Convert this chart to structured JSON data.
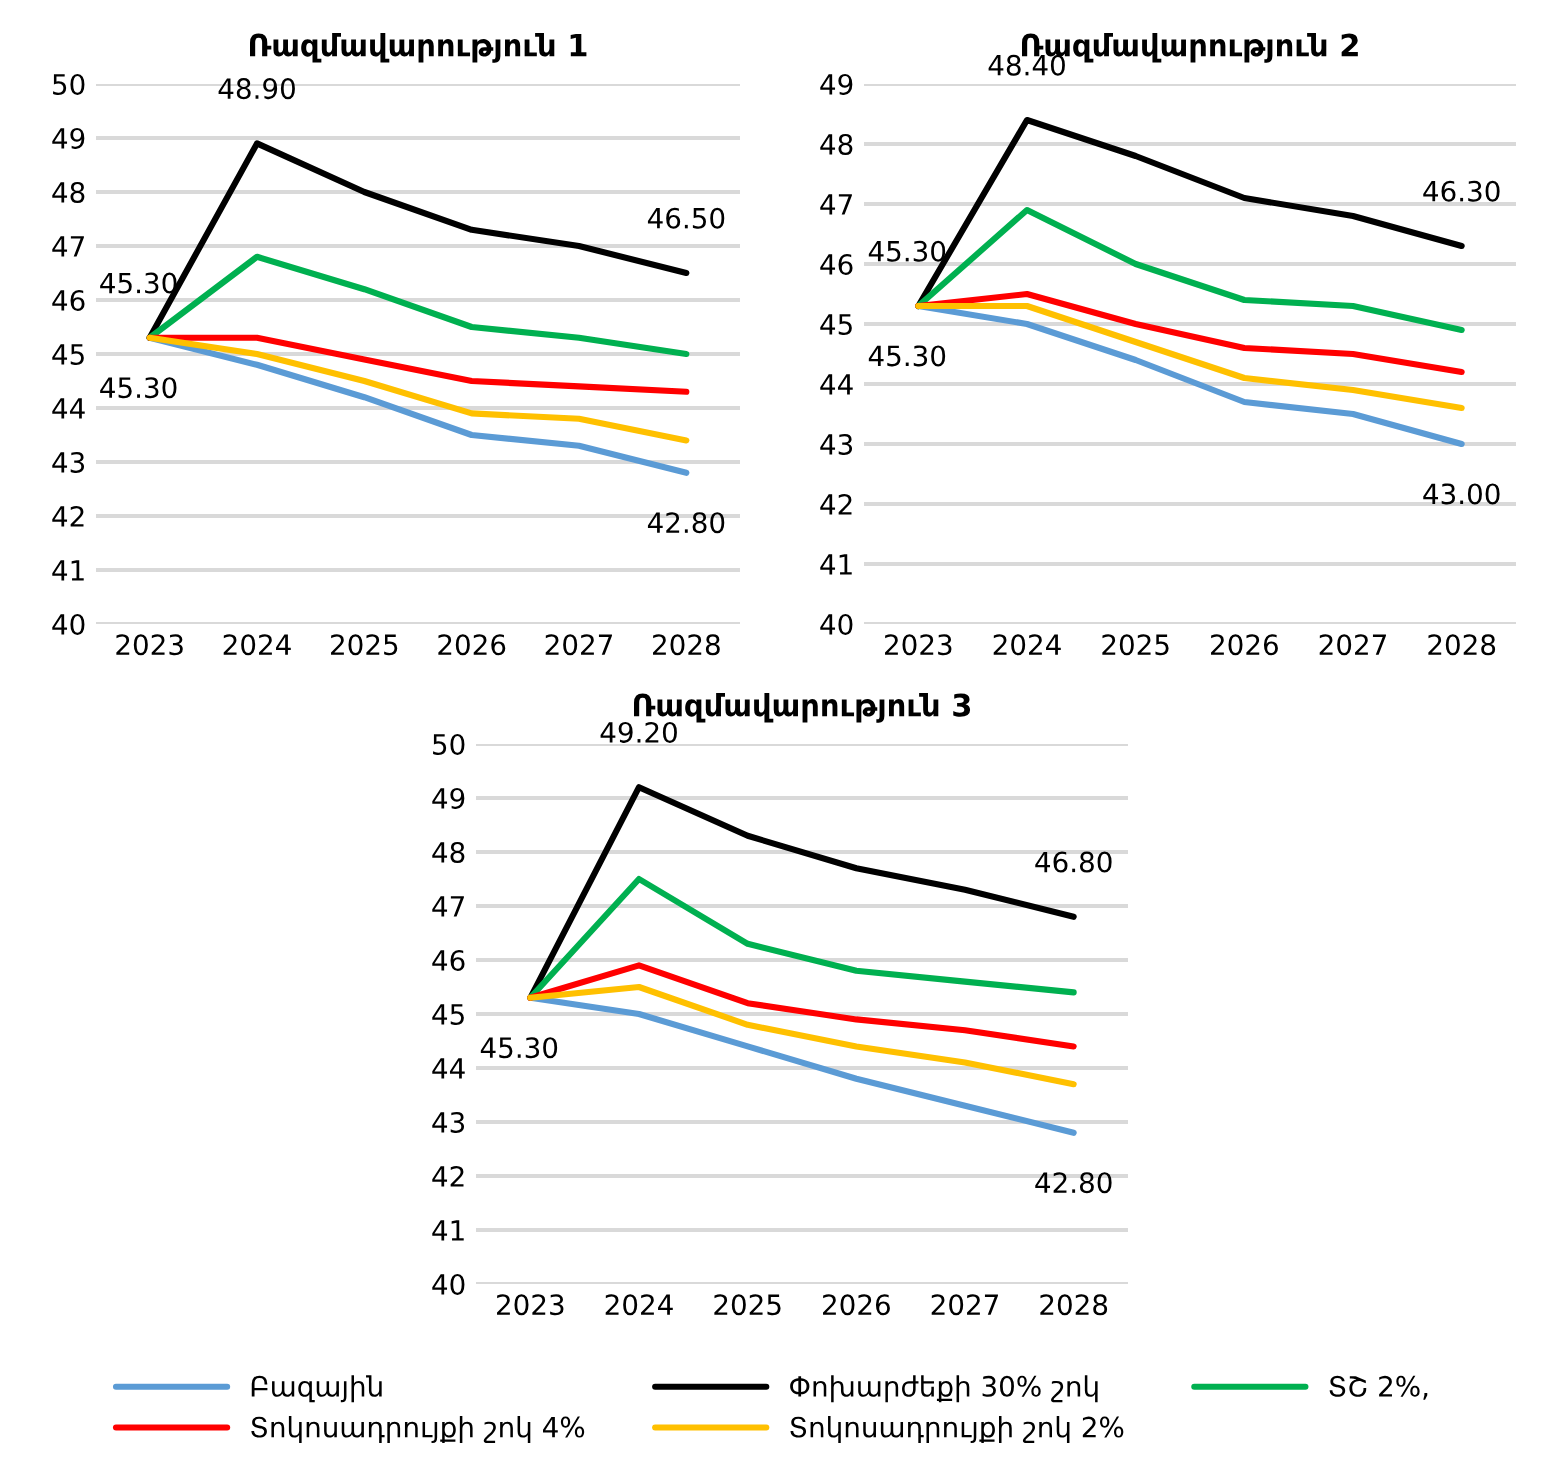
{
  "chart_data": [
    {
      "type": "line",
      "title": "Ռազմավարություն 1",
      "categories": [
        "2023",
        "2024",
        "2025",
        "2026",
        "2027",
        "2028"
      ],
      "ylim": [
        40,
        50
      ],
      "yticks": [
        40,
        41,
        42,
        43,
        44,
        45,
        46,
        47,
        48,
        49,
        50
      ],
      "grid": "y",
      "legend": "bottom",
      "series": [
        {
          "name": "Բազային",
          "color": "#5b9bd5",
          "values": [
            45.3,
            44.8,
            44.2,
            43.5,
            43.3,
            42.8
          ]
        },
        {
          "name": "Փոխարժեքի 30% շոկ",
          "color": "#000000",
          "values": [
            45.3,
            48.9,
            48.0,
            47.3,
            47.0,
            46.5
          ]
        },
        {
          "name": "ՏՇ 2%,",
          "color": "#00b050",
          "values": [
            45.3,
            46.8,
            46.2,
            45.5,
            45.3,
            45.0
          ]
        },
        {
          "name": "Տոկոսադրույքի շոկ 4%",
          "color": "#ff0000",
          "values": [
            45.3,
            45.3,
            44.9,
            44.5,
            44.4,
            44.3
          ]
        },
        {
          "name": "Տոկոսադրույքի շոկ 2%",
          "color": "#ffc000",
          "values": [
            45.3,
            45.0,
            44.5,
            43.9,
            43.8,
            43.4
          ]
        }
      ],
      "annotations": [
        {
          "text": "45.30",
          "x": "2023",
          "y": 45.3
        },
        {
          "text": "45.30",
          "x": "2023",
          "y": 45.3
        },
        {
          "text": "48.90",
          "x": "2024",
          "y": 48.9
        },
        {
          "text": "46.50",
          "x": "2028",
          "y": 46.5
        },
        {
          "text": "42.80",
          "x": "2028",
          "y": 42.8
        }
      ]
    },
    {
      "type": "line",
      "title": "Ռազմավարություն 2",
      "categories": [
        "2023",
        "2024",
        "2025",
        "2026",
        "2027",
        "2028"
      ],
      "ylim": [
        40,
        49
      ],
      "yticks": [
        40,
        41,
        42,
        43,
        44,
        45,
        46,
        47,
        48,
        49
      ],
      "grid": "y",
      "series": [
        {
          "color": "#5b9bd5",
          "values": [
            45.3,
            45.0,
            44.4,
            43.7,
            43.5,
            43.0
          ]
        },
        {
          "color": "#000000",
          "values": [
            45.3,
            48.4,
            47.8,
            47.1,
            46.8,
            46.3
          ]
        },
        {
          "color": "#00b050",
          "values": [
            45.3,
            46.9,
            46.0,
            45.4,
            45.3,
            44.9
          ]
        },
        {
          "color": "#ff0000",
          "values": [
            45.3,
            45.5,
            45.0,
            44.6,
            44.5,
            44.2
          ]
        },
        {
          "color": "#ffc000",
          "values": [
            45.3,
            45.3,
            44.7,
            44.1,
            43.9,
            43.6
          ]
        }
      ],
      "annotations": [
        {
          "text": "45.30",
          "x": "2023",
          "y": 45.3
        },
        {
          "text": "45.30",
          "x": "2023",
          "y": 45.3
        },
        {
          "text": "48.40",
          "x": "2024",
          "y": 48.4
        },
        {
          "text": "46.30",
          "x": "2028",
          "y": 46.3
        },
        {
          "text": "43.00",
          "x": "2028",
          "y": 43.0
        }
      ]
    },
    {
      "type": "line",
      "title": "Ռազմավարություն 3",
      "categories": [
        "2023",
        "2024",
        "2025",
        "2026",
        "2027",
        "2028"
      ],
      "ylim": [
        40,
        50
      ],
      "yticks": [
        40,
        41,
        42,
        43,
        44,
        45,
        46,
        47,
        48,
        49,
        50
      ],
      "grid": "y",
      "series": [
        {
          "color": "#5b9bd5",
          "values": [
            45.3,
            45.0,
            44.4,
            43.8,
            43.3,
            42.8
          ]
        },
        {
          "color": "#000000",
          "values": [
            45.3,
            49.2,
            48.3,
            47.7,
            47.3,
            46.8
          ]
        },
        {
          "color": "#00b050",
          "values": [
            45.3,
            47.5,
            46.3,
            45.8,
            45.6,
            45.4
          ]
        },
        {
          "color": "#ff0000",
          "values": [
            45.3,
            45.9,
            45.2,
            44.9,
            44.7,
            44.4
          ]
        },
        {
          "color": "#ffc000",
          "values": [
            45.3,
            45.5,
            44.8,
            44.4,
            44.1,
            43.7
          ]
        }
      ],
      "annotations": [
        {
          "text": "45.30",
          "x": "2023",
          "y": 45.3
        },
        {
          "text": "49.20",
          "x": "2024",
          "y": 49.2
        },
        {
          "text": "46.80",
          "x": "2028",
          "y": 46.8
        },
        {
          "text": "42.80",
          "x": "2028",
          "y": 42.8
        }
      ]
    }
  ]
}
